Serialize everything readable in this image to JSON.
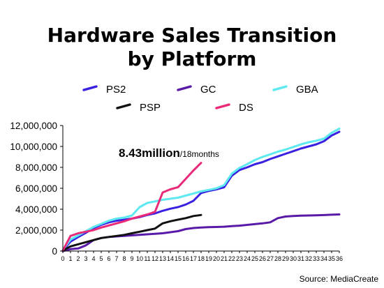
{
  "chart_data": {
    "type": "line",
    "title_line1": "Hardware Sales Transition",
    "title_line2": "by Platform",
    "xlabel": "",
    "ylabel": "",
    "xlim": [
      0,
      36
    ],
    "ylim": [
      0,
      12000000
    ],
    "x_ticks": [
      0,
      1,
      2,
      3,
      4,
      5,
      6,
      7,
      8,
      9,
      10,
      11,
      12,
      13,
      14,
      15,
      16,
      17,
      18,
      19,
      20,
      21,
      22,
      23,
      24,
      25,
      26,
      27,
      28,
      29,
      30,
      31,
      32,
      33,
      34,
      35,
      36
    ],
    "y_ticks": [
      0,
      2000000,
      4000000,
      6000000,
      8000000,
      10000000,
      12000000
    ],
    "y_tick_labels": [
      "0",
      "2,000,000",
      "4,000,000",
      "6,000,000",
      "8,000,000",
      "10,000,000",
      "12,000,000"
    ],
    "grid": false,
    "legend": {
      "placement": "top",
      "rows": [
        [
          "PS2",
          "GC",
          "GBA"
        ],
        [
          "PSP",
          "DS"
        ]
      ]
    },
    "annotation": {
      "main": "8.43million",
      "sub": "/18months"
    },
    "source": "Source: MediaCreate",
    "series": [
      {
        "name": "PS2",
        "color": "#3a20e0",
        "x": [
          0,
          1,
          2,
          3,
          4,
          5,
          6,
          7,
          8,
          9,
          10,
          11,
          12,
          13,
          14,
          15,
          16,
          17,
          18,
          19,
          20,
          21,
          22,
          23,
          24,
          25,
          26,
          27,
          28,
          29,
          30,
          31,
          32,
          33,
          34,
          35,
          36
        ],
        "y": [
          50000,
          900000,
          1350000,
          1750000,
          2200000,
          2500000,
          2750000,
          2900000,
          3000000,
          3100000,
          3250000,
          3450000,
          3600000,
          3850000,
          4050000,
          4200000,
          4450000,
          4800000,
          5550000,
          5750000,
          5900000,
          6100000,
          7200000,
          7750000,
          8000000,
          8300000,
          8500000,
          8800000,
          9050000,
          9300000,
          9550000,
          9800000,
          10000000,
          10200000,
          10500000,
          11050000,
          11400000
        ]
      },
      {
        "name": "GC",
        "color": "#5a1aa8",
        "x": [
          0,
          1,
          2,
          3,
          4,
          5,
          6,
          7,
          8,
          9,
          10,
          11,
          12,
          13,
          14,
          15,
          16,
          17,
          18,
          19,
          20,
          21,
          22,
          23,
          24,
          25,
          26,
          27,
          28,
          29,
          30,
          31,
          32,
          33,
          34,
          35,
          36
        ],
        "y": [
          0,
          180000,
          250000,
          550000,
          1050000,
          1250000,
          1350000,
          1400000,
          1450000,
          1500000,
          1550000,
          1600000,
          1650000,
          1700000,
          1800000,
          1900000,
          2100000,
          2200000,
          2250000,
          2280000,
          2300000,
          2330000,
          2380000,
          2430000,
          2500000,
          2570000,
          2650000,
          2750000,
          3150000,
          3300000,
          3350000,
          3380000,
          3400000,
          3420000,
          3440000,
          3470000,
          3500000
        ]
      },
      {
        "name": "GBA",
        "color": "#5ee8f0",
        "x": [
          0,
          1,
          2,
          3,
          4,
          5,
          6,
          7,
          8,
          9,
          10,
          11,
          12,
          13,
          14,
          15,
          16,
          17,
          18,
          19,
          20,
          21,
          22,
          23,
          24,
          25,
          26,
          27,
          28,
          29,
          30,
          31,
          32,
          33,
          34,
          35,
          36
        ],
        "y": [
          100000,
          1100000,
          1500000,
          1900000,
          2300000,
          2600000,
          2900000,
          3100000,
          3200000,
          3400000,
          4200000,
          4600000,
          4750000,
          4900000,
          5000000,
          5100000,
          5300000,
          5500000,
          5700000,
          5850000,
          6000000,
          6300000,
          7400000,
          7950000,
          8300000,
          8700000,
          9000000,
          9250000,
          9500000,
          9700000,
          9950000,
          10200000,
          10400000,
          10550000,
          10750000,
          11300000,
          11700000
        ]
      },
      {
        "name": "PSP",
        "color": "#111111",
        "x": [
          0,
          1,
          2,
          3,
          4,
          5,
          6,
          7,
          8,
          9,
          10,
          11,
          12,
          13,
          14,
          15,
          16,
          17,
          18
        ],
        "y": [
          50000,
          450000,
          650000,
          850000,
          1050000,
          1250000,
          1350000,
          1450000,
          1550000,
          1700000,
          1850000,
          2000000,
          2150000,
          2650000,
          2850000,
          3000000,
          3150000,
          3350000,
          3450000
        ]
      },
      {
        "name": "DS",
        "color": "#e82a78",
        "x": [
          0,
          1,
          2,
          3,
          4,
          5,
          6,
          7,
          8,
          9,
          10,
          11,
          12,
          13,
          14,
          15,
          16,
          17,
          18
        ],
        "y": [
          50000,
          1450000,
          1700000,
          1850000,
          2000000,
          2250000,
          2450000,
          2650000,
          2850000,
          3100000,
          3300000,
          3500000,
          3750000,
          5600000,
          5900000,
          6100000,
          6900000,
          7700000,
          8430000
        ]
      }
    ]
  }
}
